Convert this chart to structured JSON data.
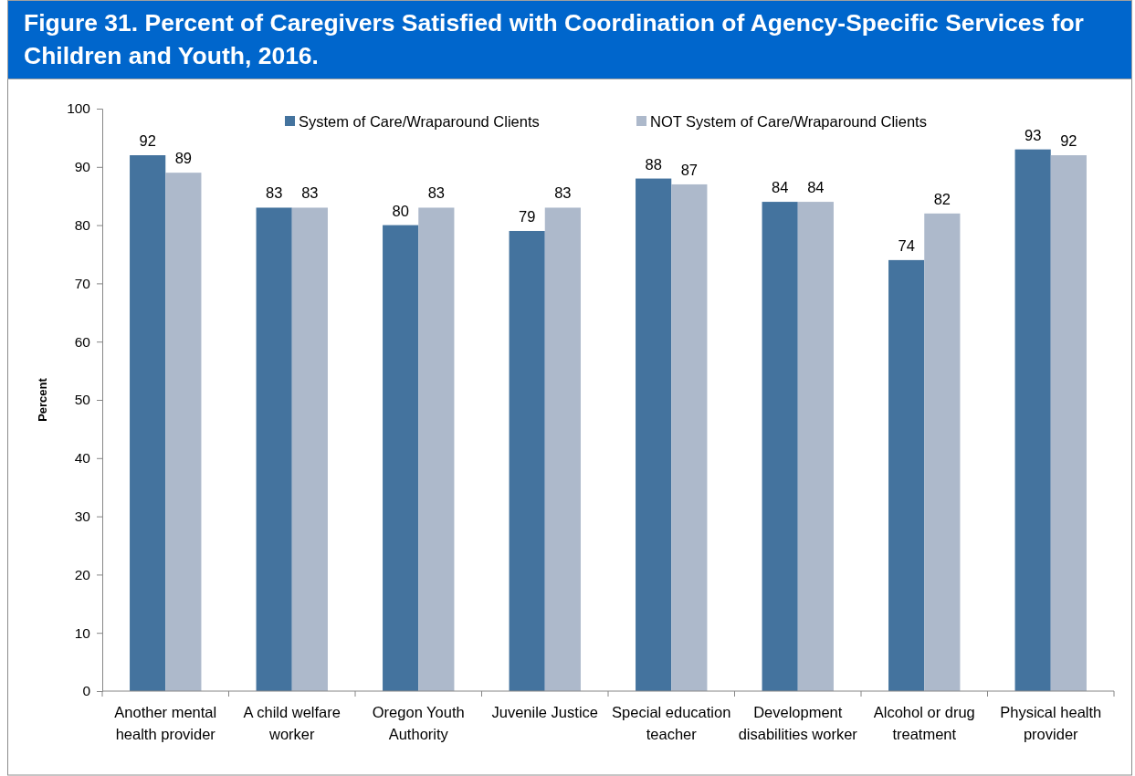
{
  "chart_data": {
    "type": "bar",
    "title": "Figure 31. Percent of Caregivers Satisfied with Coordination of Agency-Specific Services for Children and Youth, 2016.",
    "ylabel": "Percent",
    "categories": [
      "Another mental health provider",
      "A child welfare worker",
      "Oregon Youth Authority",
      "Juvenile Justice",
      "Special education teacher",
      "Development disabilities worker",
      "Alcohol or drug treatment",
      "Physical health provider"
    ],
    "series": [
      {
        "name": "System of Care/Wraparound Clients",
        "color": "#44739e",
        "values": [
          92,
          83,
          80,
          79,
          88,
          84,
          74,
          93
        ]
      },
      {
        "name": "NOT System of Care/Wraparound Clients",
        "color": "#adb9cb",
        "values": [
          89,
          83,
          83,
          83,
          87,
          84,
          82,
          92
        ]
      }
    ],
    "ylim": [
      0,
      100
    ],
    "yticks": [
      0,
      10,
      20,
      30,
      40,
      50,
      60,
      70,
      80,
      90,
      100
    ],
    "data_labels": true,
    "legend": "top",
    "grid": false
  }
}
